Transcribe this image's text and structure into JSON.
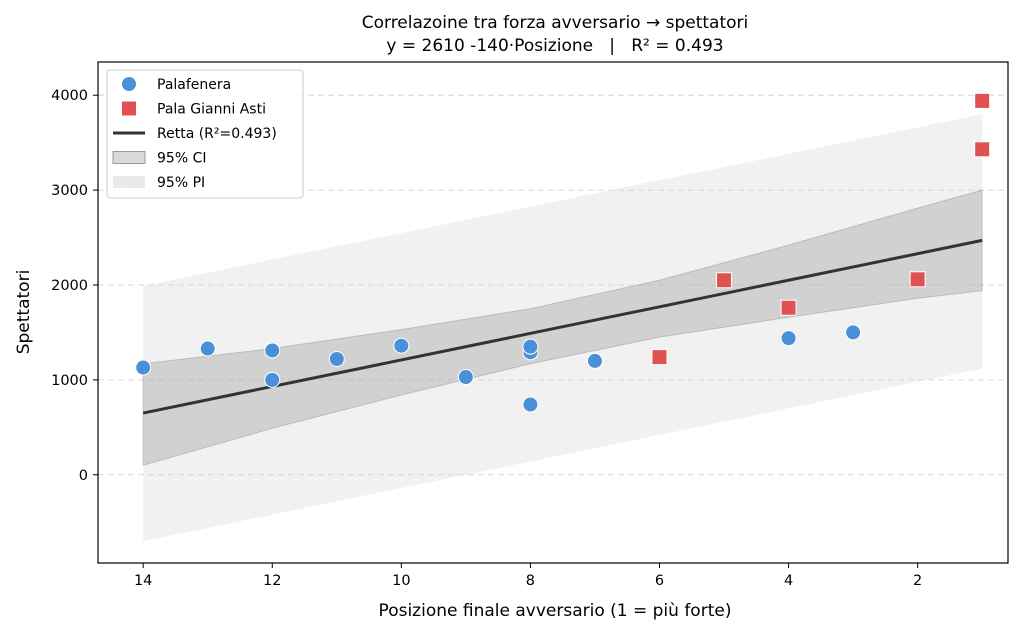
{
  "chart_data": {
    "type": "scatter",
    "title": "Correlazoine tra forza avversario → spettatori",
    "subtitle": "y = 2610 -140·Posizione   |   R² = 0.493",
    "xlabel": "Posizione finale avversario (1 = più forte)",
    "ylabel": "Spettatori",
    "xlim": [
      14.7,
      0.6
    ],
    "ylim": [
      -930,
      4350
    ],
    "x_inverted": true,
    "xticks": [
      14,
      12,
      10,
      8,
      6,
      4,
      2
    ],
    "yticks": [
      0,
      1000,
      2000,
      3000,
      4000
    ],
    "grid": "y-dashed",
    "legend_position": "top-left",
    "series": [
      {
        "name": "Palafenera",
        "marker": "circle",
        "color": "#4a90d9",
        "points": [
          [
            14,
            1130
          ],
          [
            13,
            1330
          ],
          [
            12,
            1310
          ],
          [
            12,
            1000
          ],
          [
            11,
            1220
          ],
          [
            10,
            1360
          ],
          [
            9,
            1030
          ],
          [
            8,
            1290
          ],
          [
            8,
            1350
          ],
          [
            8,
            740
          ],
          [
            7,
            1200
          ],
          [
            4,
            1440
          ],
          [
            3,
            1500
          ]
        ]
      },
      {
        "name": "Pala Gianni Asti",
        "marker": "square",
        "color": "#e05252",
        "points": [
          [
            6,
            1240
          ],
          [
            5,
            2050
          ],
          [
            4,
            1760
          ],
          [
            2,
            2060
          ],
          [
            1,
            3940
          ],
          [
            1,
            3430
          ]
        ]
      }
    ],
    "regression": {
      "name": "Retta (R²=0.493)",
      "color": "#333333",
      "intercept": 2610,
      "slope": -140,
      "x_range": [
        14,
        1
      ]
    },
    "ci_band": {
      "name": "95% CI",
      "color": "#aaaaaa",
      "x": [
        14,
        12,
        10,
        8,
        6,
        4,
        2,
        1
      ],
      "lower": [
        100,
        490,
        840,
        1170,
        1450,
        1660,
        1860,
        1940
      ],
      "upper": [
        1170,
        1330,
        1530,
        1750,
        2050,
        2420,
        2810,
        3000
      ]
    },
    "pi_band": {
      "name": "95% PI",
      "color": "#d6d6d6",
      "x": [
        14,
        1
      ],
      "lower": [
        -700,
        1120
      ],
      "upper": [
        1990,
        3800
      ]
    }
  }
}
